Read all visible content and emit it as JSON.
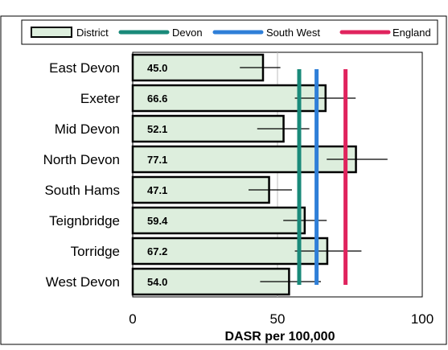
{
  "title": "",
  "chart_data": {
    "type": "bar",
    "orientation": "horizontal",
    "title": "",
    "xlabel": "DASR per 100,000",
    "ylabel": "",
    "xlim": [
      0,
      100
    ],
    "xticks": [
      "0",
      "50",
      "100"
    ],
    "grid": true,
    "legend_placement": "top",
    "categories": [
      "East Devon",
      "Exeter",
      "Mid Devon",
      "North Devon",
      "South Hams",
      "Teignbridge",
      "Torridge",
      "West Devon"
    ],
    "series": [
      {
        "name": "District",
        "values": [
          45.0,
          66.6,
          52.1,
          77.1,
          47.1,
          59.4,
          67.2,
          54.0
        ],
        "value_labels": [
          "45.0",
          "66.6",
          "52.1",
          "77.1",
          "47.1",
          "59.4",
          "67.2",
          "54.0"
        ],
        "error_bars": [
          [
            37,
            51
          ],
          [
            56,
            77
          ],
          [
            43,
            61
          ],
          [
            67,
            88
          ],
          [
            40,
            55
          ],
          [
            52,
            67
          ],
          [
            56,
            79
          ],
          [
            44,
            65
          ]
        ],
        "fill": "#ddeedd",
        "border": "#000000"
      }
    ],
    "reference_lines": [
      {
        "name": "Devon",
        "value": 57.5,
        "color": "#1a8a7a"
      },
      {
        "name": "South West",
        "value": 63.5,
        "color": "#2f7fd8"
      },
      {
        "name": "England",
        "value": 73.5,
        "color": "#e0245e"
      }
    ]
  }
}
